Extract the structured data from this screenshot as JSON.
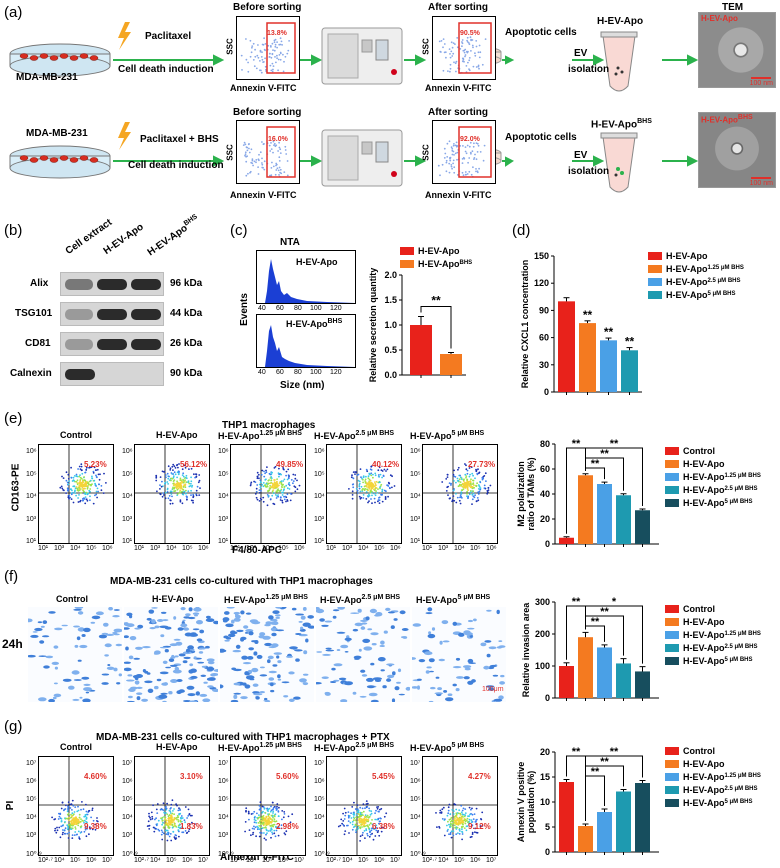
{
  "panel_a": {
    "label": "(a)",
    "row1": {
      "cell_label": "MDA-MB-231",
      "treatment": "Paclitaxel",
      "induction": "Cell death induction",
      "before_title": "Before sorting",
      "before_pct": "13.8%",
      "after_title": "After sorting",
      "after_pct": "90.5%",
      "yaxis": "SSC",
      "xaxis": "Annexin V-FITC",
      "apoptotic": "Apoptotic cells",
      "ev": "EV",
      "isolation": "isolation",
      "product": "H-EV-Apo",
      "tem_title": "TEM",
      "tem_label": "H-EV-Apo",
      "scale": "100 nm"
    },
    "row2": {
      "cell_label": "MDA-MB-231",
      "treatment": "Paclitaxel + BHS",
      "induction": "Cell death induction",
      "before_title": "Before sorting",
      "before_pct": "16.0%",
      "after_title": "After sorting",
      "after_pct": "92.0%",
      "yaxis": "SSC",
      "xaxis": "Annexin V-FITC",
      "apoptotic": "Apoptotic cells",
      "ev": "EV",
      "isolation": "isolation",
      "product": "H-EV-Apo",
      "product_sup": "BHS",
      "tem_label": "H-EV-Apo",
      "tem_sup": "BHS",
      "scale": "100 nm"
    }
  },
  "panel_b": {
    "label": "(b)",
    "lanes": [
      "Cell extract",
      "H-EV-Apo",
      "H-EV-Apo"
    ],
    "lane3_sup": "BHS",
    "proteins": [
      "Alix",
      "TSG101",
      "CD81",
      "Calnexin"
    ],
    "sizes": [
      "96 kDa",
      "44 kDa",
      "26 kDa",
      "90 kDa"
    ]
  },
  "panel_c": {
    "label": "(c)",
    "nta_title": "NTA",
    "hist1": "H-EV-Apo",
    "hist2": "H-EV-Apo",
    "hist2_sup": "BHS",
    "yaxis": "Events",
    "xaxis": "Size (nm)",
    "ticks": [
      "40",
      "60",
      "80",
      "100",
      "120"
    ],
    "sig": "**"
  },
  "panel_d": {
    "label": "(d)"
  },
  "panel_e": {
    "label": "(e)",
    "title": "THP1 macrophages",
    "groups": [
      "Control",
      "H-EV-Apo",
      "H-EV-Apo",
      "H-EV-Apo",
      "H-EV-Apo"
    ],
    "group_sups": [
      "",
      "",
      "1.25 μM BHS",
      "2.5 μM BHS",
      "5 μM BHS"
    ],
    "pcts": [
      "5.23%",
      "56.12%",
      "49.85%",
      "40.12%",
      "27.73%"
    ],
    "yaxis": "CD163-PE",
    "xaxis": "F4/80-APC",
    "yticks": [
      "10⁶",
      "10⁵",
      "10⁴",
      "10³",
      "10¹"
    ],
    "xticks": [
      "10¹",
      "10³",
      "10⁴",
      "10⁵",
      "10⁶"
    ]
  },
  "panel_f": {
    "label": "(f)",
    "title": "MDA-MB-231 cells co-cultured with THP1 macrophages",
    "groups": [
      "Control",
      "H-EV-Apo",
      "H-EV-Apo",
      "H-EV-Apo",
      "H-EV-Apo"
    ],
    "group_sups": [
      "",
      "",
      "1.25 μM BHS",
      "2.5 μM BHS",
      "5 μM BHS"
    ],
    "time": "24h",
    "scale": "100μm"
  },
  "panel_g": {
    "label": "(g)",
    "title": "MDA-MB-231 cells co-cultured with THP1 macrophages + PTX",
    "groups": [
      "Control",
      "H-EV-Apo",
      "H-EV-Apo",
      "H-EV-Apo",
      "H-EV-Apo"
    ],
    "group_sups": [
      "",
      "",
      "1.25 μM BHS",
      "2.5 μM BHS",
      "5 μM BHS"
    ],
    "upper_pcts": [
      "4.60%",
      "3.10%",
      "5.60%",
      "5.45%",
      "4.27%"
    ],
    "lower_pcts": [
      "9.38%",
      "1.83%",
      "2.98%",
      "6.38%",
      "9.12%"
    ],
    "yaxis": "PI",
    "xaxis": "Annexin V-FITC",
    "yticks": [
      "10⁷",
      "10⁶",
      "10⁵",
      "10⁴",
      "10³",
      "10⁰·⁹"
    ],
    "xticks": [
      "10²·⁷",
      "10⁴",
      "10⁵",
      "10⁶",
      "10⁷"
    ]
  },
  "colors": {
    "control": "#e8221b",
    "h_ev_apo": "#f47a20",
    "bhs125": "#4aa0e6",
    "bhs25": "#1e9ab0",
    "bhs5": "#174e5e",
    "gate": "#e0302a",
    "arrow": "#2bb24c"
  },
  "chart_data": [
    {
      "id": "c",
      "type": "bar",
      "categories": [
        "H-EV-Apo",
        "H-EV-Apo BHS"
      ],
      "values": [
        1.0,
        0.42
      ],
      "errors": [
        0.17,
        0.03
      ],
      "title": "",
      "xlabel": "",
      "ylabel": "Relative secretion quantity",
      "ylim": [
        0,
        2.0
      ],
      "yticks": [
        "0.0",
        "0.5",
        "1.0",
        "1.5",
        "2.0"
      ],
      "legend": [
        "H-EV-Apo",
        "H-EV-Apo"
      ],
      "legend_sups": [
        "",
        "BHS"
      ],
      "sig": [
        "**"
      ]
    },
    {
      "id": "d",
      "type": "bar",
      "categories": [
        "H-EV-Apo",
        "H-EV-Apo 1.25 μM BHS",
        "H-EV-Apo 2.5 μM BHS",
        "H-EV-Apo 5 μM BHS"
      ],
      "values": [
        100,
        76,
        57,
        46
      ],
      "errors": [
        4,
        2.5,
        2.5,
        3
      ],
      "ylabel": "Relative CXCL1 concentration",
      "ylim": [
        0,
        150
      ],
      "yticks": [
        "0",
        "30",
        "60",
        "90",
        "120",
        "150"
      ],
      "legend": [
        "H-EV-Apo",
        "H-EV-Apo",
        "H-EV-Apo",
        "H-EV-Apo"
      ],
      "legend_sups": [
        "",
        "1.25 μM BHS",
        "2.5 μM BHS",
        "5 μM BHS"
      ],
      "sig": [
        "",
        "**",
        "**",
        "**"
      ]
    },
    {
      "id": "e",
      "type": "bar",
      "categories": [
        "Control",
        "H-EV-Apo",
        "H-EV-Apo 1.25 μM BHS",
        "H-EV-Apo 2.5 μM BHS",
        "H-EV-Apo 5 μM BHS"
      ],
      "values": [
        5,
        55,
        48,
        39,
        27
      ],
      "errors": [
        0.8,
        1.2,
        1.5,
        1.2,
        1.0
      ],
      "ylabel": "M2 polarization ratio of TAMs (%)",
      "ylim": [
        0,
        80
      ],
      "yticks": [
        "0",
        "20",
        "40",
        "60",
        "80"
      ],
      "legend": [
        "Control",
        "H-EV-Apo",
        "H-EV-Apo",
        "H-EV-Apo",
        "H-EV-Apo"
      ],
      "legend_sups": [
        "",
        "",
        "1.25 μM BHS",
        "2.5 μM BHS",
        "5 μM BHS"
      ],
      "sig": [
        "**",
        "**",
        "**",
        "**"
      ]
    },
    {
      "id": "f",
      "type": "bar",
      "categories": [
        "Control",
        "H-EV-Apo",
        "H-EV-Apo 1.25 μM BHS",
        "H-EV-Apo 2.5 μM BHS",
        "H-EV-Apo 5 μM BHS"
      ],
      "values": [
        100,
        190,
        158,
        108,
        83
      ],
      "errors": [
        10,
        15,
        8,
        15,
        15
      ],
      "ylabel": "Relative invasion area",
      "ylim": [
        0,
        300
      ],
      "yticks": [
        "0",
        "100",
        "200",
        "300"
      ],
      "legend": [
        "Control",
        "H-EV-Apo",
        "H-EV-Apo",
        "H-EV-Apo",
        "H-EV-Apo"
      ],
      "legend_sups": [
        "",
        "",
        "1.25 μM BHS",
        "2.5 μM BHS",
        "5 μM BHS"
      ],
      "sig": [
        "**",
        "*",
        "**",
        "**"
      ]
    },
    {
      "id": "g",
      "type": "bar",
      "categories": [
        "Control",
        "H-EV-Apo",
        "H-EV-Apo 1.25 μM BHS",
        "H-EV-Apo 2.5 μM BHS",
        "H-EV-Apo 5 μM BHS"
      ],
      "values": [
        14,
        5.2,
        8.0,
        12.1,
        13.8
      ],
      "errors": [
        0.5,
        0.4,
        0.6,
        0.4,
        0.5
      ],
      "ylabel": "Annexin V positive population (%)",
      "ylim": [
        0,
        20
      ],
      "yticks": [
        "0",
        "5",
        "10",
        "15",
        "20"
      ],
      "legend": [
        "Control",
        "H-EV-Apo",
        "H-EV-Apo",
        "H-EV-Apo",
        "H-EV-Apo"
      ],
      "legend_sups": [
        "",
        "",
        "1.25 μM BHS",
        "2.5 μM BHS",
        "5 μM BHS"
      ],
      "sig": [
        "**",
        "**",
        "**",
        "**"
      ]
    }
  ]
}
